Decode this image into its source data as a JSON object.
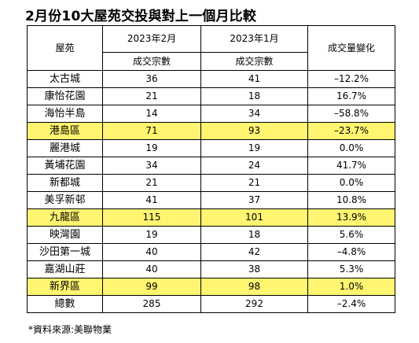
{
  "title": "2月份10大屋苑交投與對上一個月比較",
  "table": {
    "header": {
      "estate": "屋苑",
      "feb": "2023年2月",
      "jan": "2023年1月",
      "change": "成交量變化",
      "sub_feb": "成交宗數",
      "sub_jan": "成交宗數"
    },
    "rows": [
      {
        "name": "太古城",
        "feb": "36",
        "jan": "41",
        "change": "–12.2%",
        "highlight": false
      },
      {
        "name": "康怡花園",
        "feb": "21",
        "jan": "18",
        "change": "16.7%",
        "highlight": false
      },
      {
        "name": "海怡半島",
        "feb": "14",
        "jan": "34",
        "change": "–58.8%",
        "highlight": false
      },
      {
        "name": "港島區",
        "feb": "71",
        "jan": "93",
        "change": "–23.7%",
        "highlight": true
      },
      {
        "name": "麗港城",
        "feb": "19",
        "jan": "19",
        "change": "0.0%",
        "highlight": false
      },
      {
        "name": "黃埔花園",
        "feb": "34",
        "jan": "24",
        "change": "41.7%",
        "highlight": false
      },
      {
        "name": "新都城",
        "feb": "21",
        "jan": "21",
        "change": "0.0%",
        "highlight": false
      },
      {
        "name": "美孚新邨",
        "feb": "41",
        "jan": "37",
        "change": "10.8%",
        "highlight": false
      },
      {
        "name": "九龍區",
        "feb": "115",
        "jan": "101",
        "change": "13.9%",
        "highlight": true
      },
      {
        "name": "映灣園",
        "feb": "19",
        "jan": "18",
        "change": "5.6%",
        "highlight": false
      },
      {
        "name": "沙田第一城",
        "feb": "40",
        "jan": "42",
        "change": "–4.8%",
        "highlight": false
      },
      {
        "name": "嘉湖山莊",
        "feb": "40",
        "jan": "38",
        "change": "5.3%",
        "highlight": false
      },
      {
        "name": "新界區",
        "feb": "99",
        "jan": "98",
        "change": "1.0%",
        "highlight": true
      },
      {
        "name": "總數",
        "feb": "285",
        "jan": "292",
        "change": "–2.4%",
        "highlight": false
      }
    ]
  },
  "footnote": "*資料來源:美聯物業",
  "colors": {
    "highlight": "#fff571",
    "border": "#000000"
  }
}
